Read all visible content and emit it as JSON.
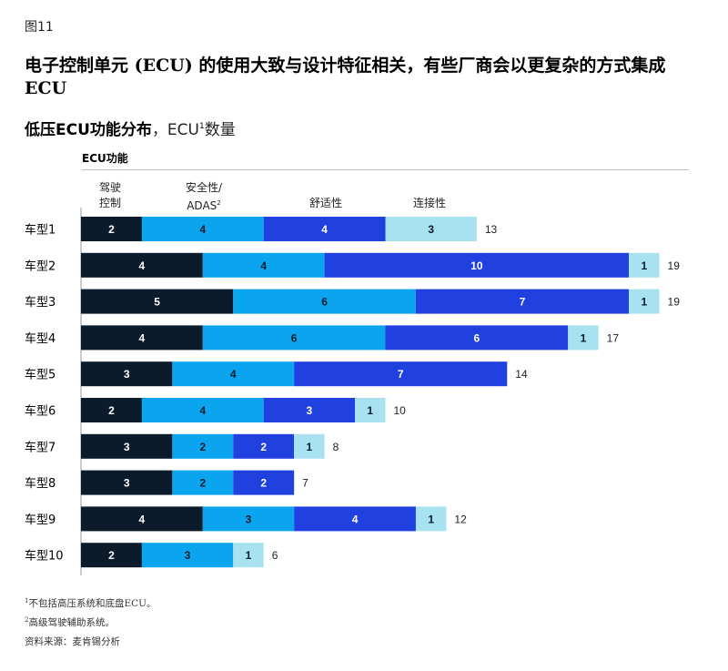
{
  "figure_label": "图11",
  "headline": "电子控制单元 (ECU) 的使用大致与设计特征相关，有些厂商会以更复杂的方式集成ECU",
  "subtitle": {
    "bold": "低压ECU功能分布",
    "plain": "，ECU",
    "sup": "1",
    "tail": "数量"
  },
  "legend_title": "ECU功能",
  "segment_headers": [
    {
      "line1": "驾驶",
      "line2": "控制",
      "sup": ""
    },
    {
      "line1": "安全性/",
      "line2": "ADAS",
      "sup": "2"
    },
    {
      "line1": "舒适性",
      "line2": "",
      "sup": ""
    },
    {
      "line1": "连接性",
      "line2": "",
      "sup": ""
    }
  ],
  "colors": {
    "driving_control": "#0b1b2c",
    "safety_adas": "#0aa5ee",
    "comfort": "#2040e0",
    "connectivity": "#a8e1f0",
    "axis": "#9a9a9a"
  },
  "chart_data": {
    "type": "bar",
    "orientation": "horizontal",
    "stacked": true,
    "categories": [
      "车型1",
      "车型2",
      "车型3",
      "车型4",
      "车型5",
      "车型6",
      "车型7",
      "车型8",
      "车型9",
      "车型10"
    ],
    "series": [
      {
        "name": "驾驶控制",
        "values": [
          2,
          4,
          5,
          4,
          3,
          2,
          3,
          3,
          4,
          2
        ]
      },
      {
        "name": "安全性/ADAS",
        "values": [
          4,
          4,
          6,
          6,
          4,
          4,
          2,
          2,
          3,
          3
        ]
      },
      {
        "name": "舒适性",
        "values": [
          4,
          10,
          7,
          6,
          7,
          3,
          2,
          2,
          4,
          0
        ]
      },
      {
        "name": "连接性",
        "values": [
          3,
          1,
          1,
          1,
          0,
          1,
          1,
          0,
          1,
          1
        ]
      }
    ],
    "totals": [
      13,
      19,
      19,
      17,
      14,
      10,
      8,
      7,
      12,
      6
    ],
    "xlim": [
      0,
      19
    ],
    "grid": false,
    "legend": "top"
  },
  "footnotes": {
    "note1_sup": "1",
    "note1": "不包括高压系统和底盘ECU。",
    "note2_sup": "2",
    "note2": "高级驾驶辅助系统。",
    "source": "资料来源：麦肯锡分析"
  }
}
